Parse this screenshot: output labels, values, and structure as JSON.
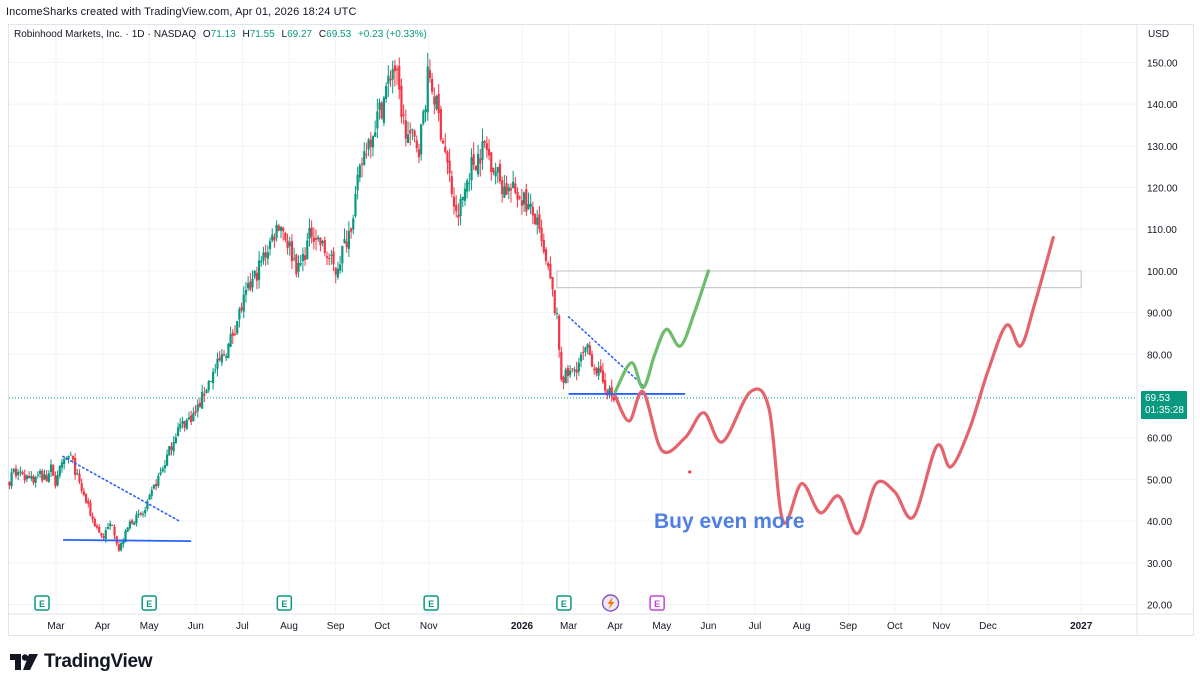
{
  "header": {
    "credit": "IncomeSharks created with TradingView.com, Apr 01, 2026 18:24 UTC"
  },
  "legend": {
    "symbol": "Robinhood Markets, Inc.",
    "interval": "1D",
    "exchange": "NASDAQ",
    "open_label": "O",
    "open": "71.13",
    "high_label": "H",
    "high": "71.55",
    "low_label": "L",
    "low": "69.27",
    "close_label": "C",
    "close": "69.53",
    "change": "+0.23 (+0.33%)"
  },
  "currency": "USD",
  "price_badge": {
    "price": "69.53",
    "countdown": "01:35:28"
  },
  "annotation": "Buy even more",
  "brand": {
    "name": "TradingView"
  },
  "colors": {
    "up": "#089981",
    "down": "#f23645",
    "blue_line": "#2962ff",
    "bearish_path": "#e5636d",
    "bullish_path": "#6dbd6a",
    "annotation": "#4f7fe0",
    "earnings": "#089981",
    "badge": "#089981"
  },
  "chart_data": {
    "type": "candlestick",
    "title": "Robinhood Markets, Inc. · 1D · NASDAQ",
    "y_axis": {
      "range": [
        17,
        157
      ],
      "ticks": [
        20,
        30,
        40,
        50,
        60,
        70,
        80,
        90,
        100,
        110,
        120,
        130,
        140,
        150
      ],
      "labels": [
        "20.00",
        "30.00",
        "40.00",
        "50.00",
        "60.00",
        "70.00",
        "80.00",
        "90.00",
        "100.00",
        "110.00",
        "120.00",
        "130.00",
        "140.00",
        "150.00"
      ]
    },
    "x_axis": {
      "labels": [
        "Mar",
        "Apr",
        "May",
        "Jun",
        "Jul",
        "Aug",
        "Sep",
        "Oct",
        "Nov",
        "2026",
        "Mar",
        "Apr",
        "May",
        "Jun",
        "Jul",
        "Aug",
        "Sep",
        "Oct",
        "Nov",
        "Dec",
        "2027"
      ],
      "positions_month_index": [
        0,
        1,
        2,
        3,
        4,
        5,
        6,
        7,
        8,
        10,
        11,
        12,
        13,
        14,
        15,
        16,
        17,
        18,
        19,
        20,
        22
      ]
    },
    "price_path": [
      [
        0,
        51
      ],
      [
        0.3,
        56
      ],
      [
        0.5,
        49
      ],
      [
        0.8,
        40
      ],
      [
        1,
        36
      ],
      [
        1.2,
        40
      ],
      [
        1.35,
        33
      ],
      [
        1.6,
        40
      ],
      [
        1.9,
        42
      ],
      [
        2.1,
        48
      ],
      [
        2.3,
        53
      ],
      [
        2.6,
        62
      ],
      [
        3,
        66
      ],
      [
        3.3,
        74
      ],
      [
        3.7,
        82
      ],
      [
        4,
        92
      ],
      [
        4.4,
        102
      ],
      [
        4.8,
        112
      ],
      [
        5.2,
        100
      ],
      [
        5.5,
        110
      ],
      [
        6,
        100
      ],
      [
        6.3,
        110
      ],
      [
        6.6,
        128
      ],
      [
        7,
        140
      ],
      [
        7.25,
        150
      ],
      [
        7.5,
        133
      ],
      [
        7.8,
        130
      ],
      [
        8,
        148
      ],
      [
        8.3,
        132
      ],
      [
        8.6,
        112
      ],
      [
        8.9,
        125
      ],
      [
        9.2,
        130
      ],
      [
        9.6,
        120
      ],
      [
        10,
        118
      ],
      [
        10.3,
        112
      ],
      [
        10.5,
        102
      ],
      [
        10.6,
        98
      ],
      [
        10.75,
        88
      ],
      [
        10.85,
        74
      ],
      [
        11.1,
        76
      ],
      [
        11.4,
        81
      ],
      [
        11.7,
        74
      ],
      [
        12,
        68.5
      ]
    ],
    "current_price": 69.53,
    "series": [
      {
        "name": "bearish projection",
        "color": "#e5636d",
        "points": [
          [
            12,
            70
          ],
          [
            12.3,
            64
          ],
          [
            12.6,
            71
          ],
          [
            13,
            57
          ],
          [
            13.5,
            60
          ],
          [
            13.9,
            66
          ],
          [
            14.3,
            59
          ],
          [
            14.9,
            71
          ],
          [
            15.3,
            67
          ],
          [
            15.6,
            40
          ],
          [
            16,
            49
          ],
          [
            16.4,
            42
          ],
          [
            16.8,
            46
          ],
          [
            17.2,
            37
          ],
          [
            17.6,
            49
          ],
          [
            18,
            47
          ],
          [
            18.4,
            41
          ],
          [
            18.9,
            58
          ],
          [
            19.2,
            53
          ],
          [
            19.6,
            62
          ],
          [
            20,
            76
          ],
          [
            20.4,
            87
          ],
          [
            20.7,
            82
          ],
          [
            21,
            92
          ],
          [
            21.4,
            108
          ]
        ]
      },
      {
        "name": "bullish projection",
        "color": "#6dbd6a",
        "points": [
          [
            12,
            71
          ],
          [
            12.35,
            78
          ],
          [
            12.6,
            72
          ],
          [
            12.85,
            80
          ],
          [
            13.1,
            86
          ],
          [
            13.4,
            82
          ],
          [
            13.7,
            90
          ],
          [
            14,
            100
          ]
        ]
      }
    ],
    "trendlines": [
      {
        "name": "support-1",
        "style": "solid",
        "points": [
          [
            0.15,
            35.5
          ],
          [
            2.9,
            35.2
          ]
        ]
      },
      {
        "name": "resistance-1",
        "style": "dotted",
        "points": [
          [
            0.15,
            55.5
          ],
          [
            2.65,
            40
          ]
        ]
      },
      {
        "name": "support-2",
        "style": "solid",
        "points": [
          [
            11.0,
            70.5
          ],
          [
            13.5,
            70.5
          ]
        ]
      },
      {
        "name": "resistance-2",
        "style": "dotted",
        "points": [
          [
            11.0,
            89
          ],
          [
            12.6,
            72.5
          ]
        ]
      }
    ],
    "zones": [
      {
        "name": "target-box",
        "y": [
          96,
          100
        ],
        "x": [
          10.75,
          22
        ]
      }
    ],
    "earnings_markers_month_index": [
      -0.3,
      2.0,
      4.9,
      8.05,
      10.9
    ],
    "dividend_marker_month_index": 12.9,
    "flash_marker_month_index": 11.9
  }
}
